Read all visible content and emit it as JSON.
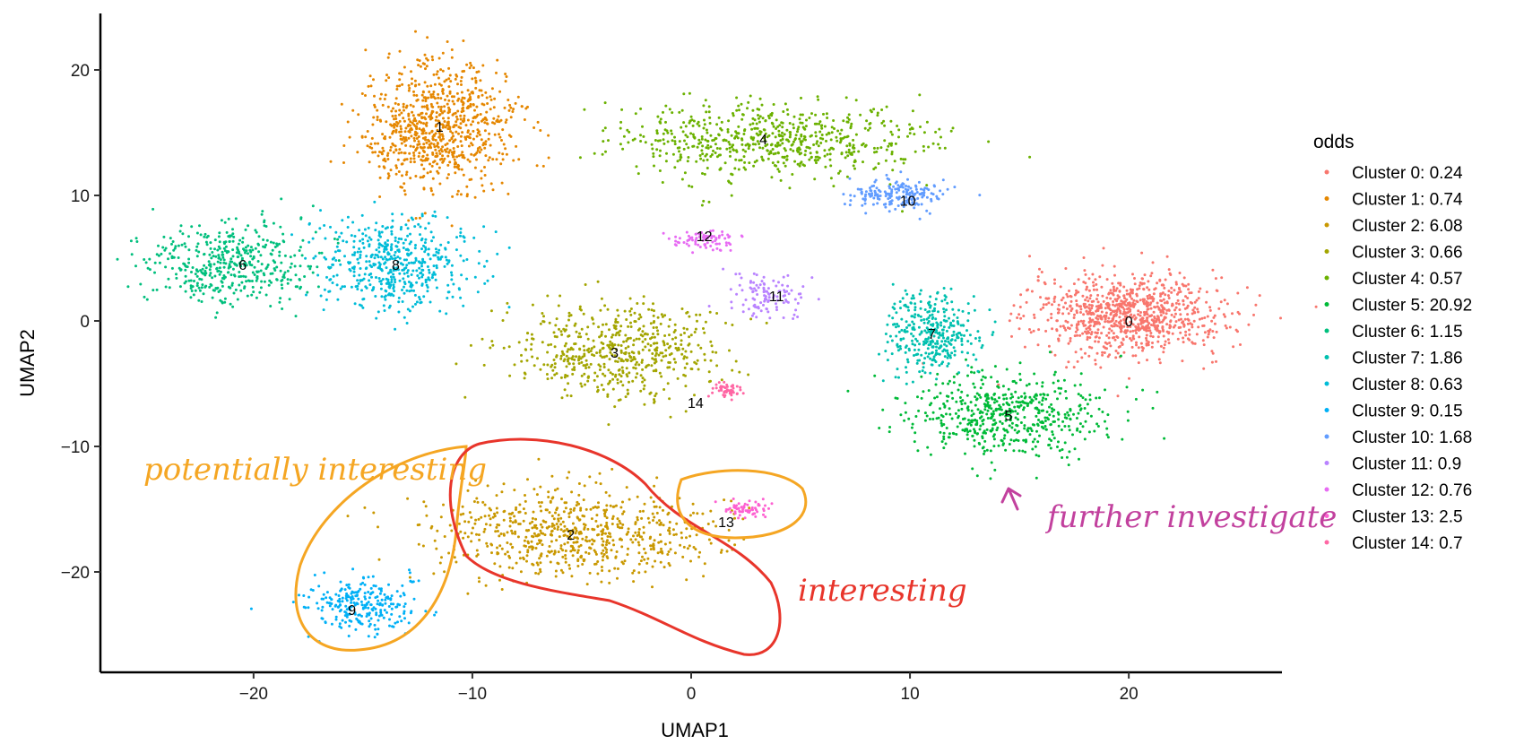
{
  "chart_data": {
    "type": "scatter",
    "xlabel": "UMAP1",
    "ylabel": "UMAP2",
    "xlim": [
      -27,
      27
    ],
    "ylim": [
      -28,
      24.5
    ],
    "xticks": [
      -20,
      -10,
      0,
      10,
      20
    ],
    "yticks": [
      -20,
      -10,
      0,
      10,
      20
    ],
    "grid": false,
    "legend": {
      "title": "odds",
      "placement": "right"
    },
    "series": [
      {
        "name": "Cluster 0: 0.24",
        "cluster": "0",
        "color": "#F8766D",
        "center": [
          20,
          0.5
        ]
      },
      {
        "name": "Cluster 1: 0.74",
        "cluster": "1",
        "color": "#E58700",
        "center": [
          -11.5,
          15.5
        ]
      },
      {
        "name": "Cluster 2: 6.08",
        "cluster": "2",
        "color": "#C99800",
        "center": [
          -5.5,
          -17
        ]
      },
      {
        "name": "Cluster 3: 0.66",
        "cluster": "3",
        "color": "#A3A500",
        "center": [
          -3.5,
          -2.5
        ]
      },
      {
        "name": "Cluster 4: 0.57",
        "cluster": "4",
        "color": "#6BB100",
        "center": [
          3.5,
          14.5
        ]
      },
      {
        "name": "Cluster 5: 20.92",
        "cluster": "5",
        "color": "#00BA38",
        "center": [
          14.5,
          -7.5
        ]
      },
      {
        "name": "Cluster 6: 1.15",
        "cluster": "6",
        "color": "#00BF7D",
        "center": [
          -21,
          4.5
        ]
      },
      {
        "name": "Cluster 7: 1.86",
        "cluster": "7",
        "color": "#00C0AF",
        "center": [
          11,
          -1
        ]
      },
      {
        "name": "Cluster 8: 0.63",
        "cluster": "8",
        "color": "#00BCD8",
        "center": [
          -13.5,
          4.5
        ]
      },
      {
        "name": "Cluster 9: 0.15",
        "cluster": "9",
        "color": "#00B0F6",
        "center": [
          -15,
          -22.5
        ]
      },
      {
        "name": "Cluster 10: 1.68",
        "cluster": "10",
        "color": "#619CFF",
        "center": [
          9.5,
          10
        ]
      },
      {
        "name": "Cluster 11: 0.9",
        "cluster": "11",
        "color": "#B983FF",
        "center": [
          3.5,
          2
        ]
      },
      {
        "name": "Cluster 12: 0.76",
        "cluster": "12",
        "color": "#E76BF3",
        "center": [
          0.5,
          6.5
        ]
      },
      {
        "name": "Cluster 13: 2.5",
        "cluster": "13",
        "color": "#FD61D1",
        "center": [
          2.5,
          -15
        ]
      },
      {
        "name": "Cluster 14: 0.7",
        "cluster": "14",
        "color": "#FF67A4",
        "center": [
          1.5,
          -5.5
        ]
      }
    ],
    "cluster_labels": [
      {
        "text": "0",
        "x": 20,
        "y": 0
      },
      {
        "text": "1",
        "x": -11.5,
        "y": 15.5
      },
      {
        "text": "2",
        "x": -5.5,
        "y": -17
      },
      {
        "text": "3",
        "x": -3.5,
        "y": -2.5
      },
      {
        "text": "4",
        "x": 3.3,
        "y": 14.5
      },
      {
        "text": "5",
        "x": 14.5,
        "y": -7.5
      },
      {
        "text": "6",
        "x": -20.5,
        "y": 4.5
      },
      {
        "text": "7",
        "x": 11,
        "y": -1
      },
      {
        "text": "8",
        "x": -13.5,
        "y": 4.5
      },
      {
        "text": "9",
        "x": -15.5,
        "y": -23
      },
      {
        "text": "10",
        "x": 9.9,
        "y": 9.6
      },
      {
        "text": "11",
        "x": 3.9,
        "y": 2
      },
      {
        "text": "12",
        "x": 0.6,
        "y": 6.8
      },
      {
        "text": "13",
        "x": 1.6,
        "y": -16
      },
      {
        "text": "14",
        "x": 0.2,
        "y": -6.5
      }
    ],
    "annotations": [
      {
        "text": "potentially interesting",
        "color": "#F5A623"
      },
      {
        "text": "interesting",
        "color": "#E8352B"
      },
      {
        "text": "further investigate",
        "color": "#C2419E"
      }
    ]
  }
}
